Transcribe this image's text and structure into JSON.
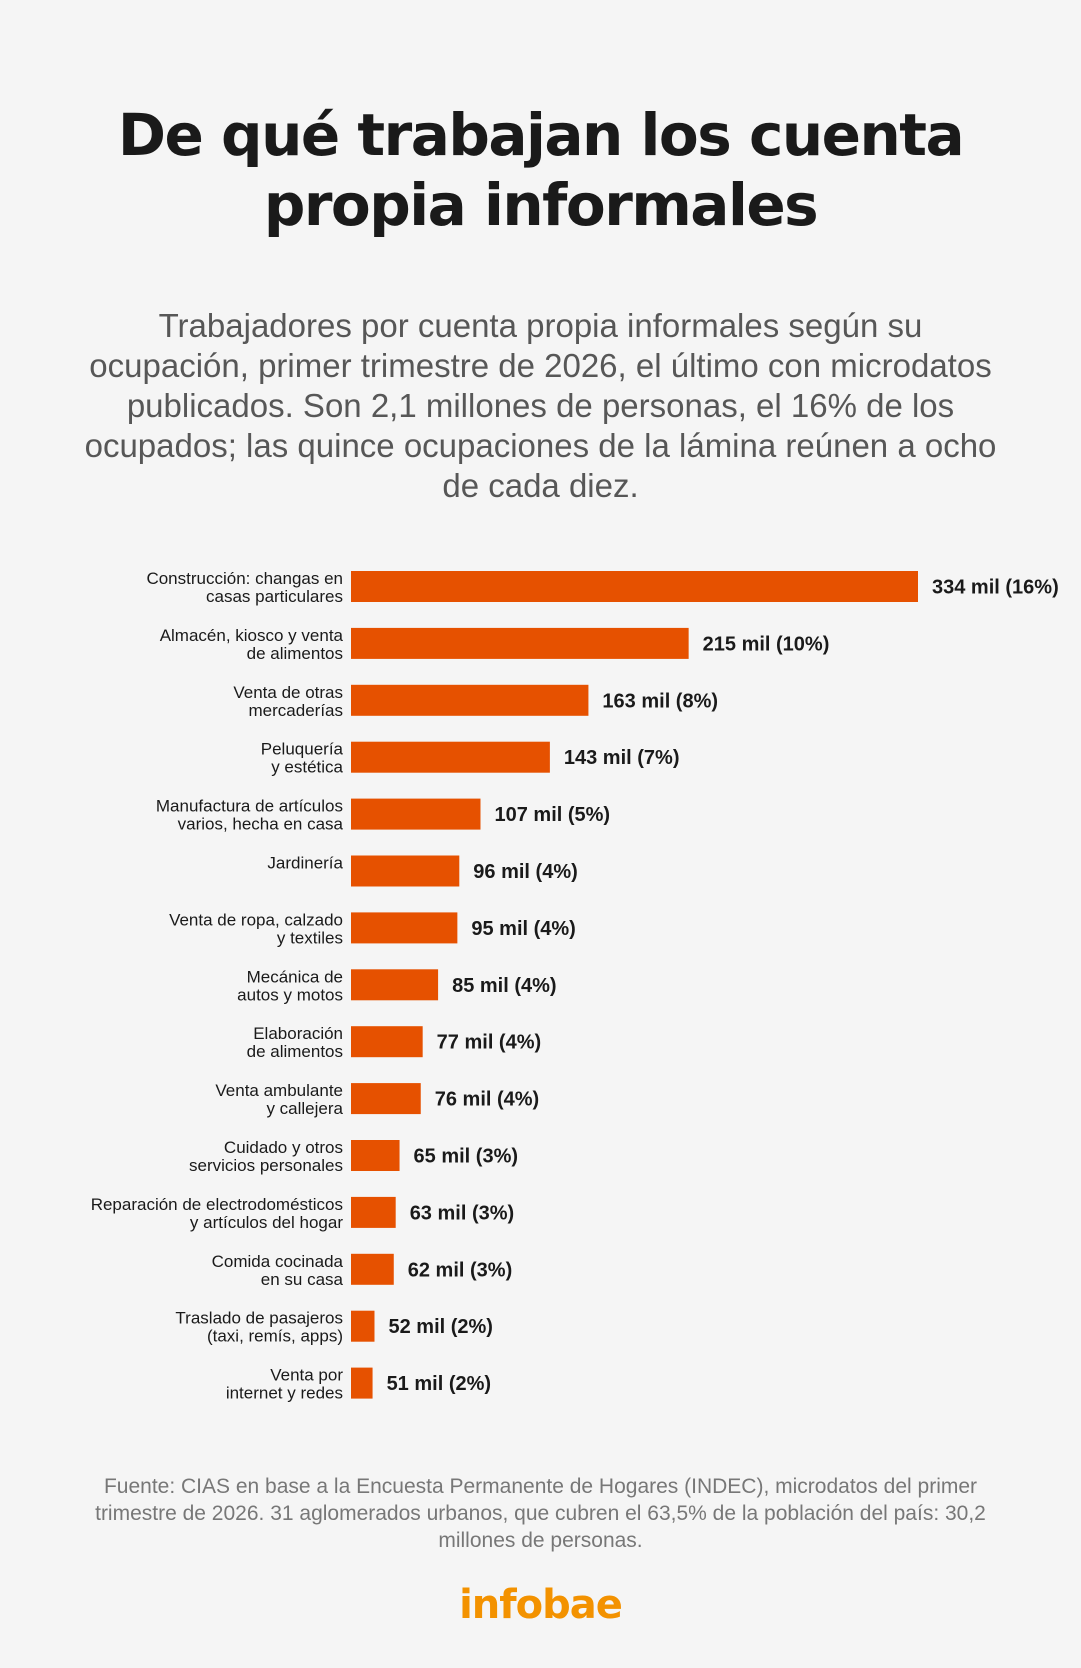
{
  "header": {
    "title": "De qué trabajan los cuenta propia informales",
    "subtitle": "Trabajadores por cuenta propia informales según su ocupación, primer trimestre de 2026, el último con microdatos publicados. Son 2,1 millones de personas, el 16% de los ocupados; las quince ocupaciones de la lámina reúnen a ocho de cada diez."
  },
  "footer": {
    "source": "Fuente: CIAS en base a la Encuesta Permanente de Hogares (INDEC), microdatos del primer trimestre de 2026. 31 aglomerados urbanos, que cubren el 63,5% de la población del país: 30,2 millones de personas.",
    "logo": "infobae"
  },
  "colors": {
    "bar": "#e65100",
    "logo": "#f39200",
    "background": "#f5f5f5"
  },
  "chart_data": {
    "type": "bar",
    "orientation": "horizontal",
    "unit": "miles de personas",
    "categories": [
      [
        "Construcción: changas en",
        "casas particulares"
      ],
      [
        "Almacén, kiosco y venta",
        "de alimentos"
      ],
      [
        "Venta de otras",
        "mercaderías"
      ],
      [
        "Peluquería",
        "y estética"
      ],
      [
        "Manufactura de artículos",
        "varios, hecha en casa"
      ],
      [
        "Jardinería"
      ],
      [
        "Venta de ropa, calzado",
        "y textiles"
      ],
      [
        "Mecánica de",
        "autos y motos"
      ],
      [
        "Elaboración",
        "de alimentos"
      ],
      [
        "Venta ambulante",
        "y callejera"
      ],
      [
        "Cuidado y otros",
        "servicios personales"
      ],
      [
        "Reparación de electrodomésticos",
        "y artículos del hogar"
      ],
      [
        "Comida cocinada",
        "en su casa"
      ],
      [
        "Traslado de pasajeros",
        "(taxi, remís, apps)"
      ],
      [
        "Venta por",
        "internet y redes"
      ]
    ],
    "values": [
      334,
      215,
      163,
      143,
      107,
      96,
      95,
      85,
      77,
      76,
      65,
      63,
      62,
      52,
      51
    ],
    "data_labels": [
      "334 mil (16%)",
      "215 mil (10%)",
      "163 mil (8%)",
      "143 mil (7%)",
      "107 mil (5%)",
      "96 mil (4%)",
      "95 mil (4%)",
      "85 mil (4%)",
      "77 mil (4%)",
      "76 mil (4%)",
      "65 mil (3%)",
      "63 mil (3%)",
      "62 mil (3%)",
      "52 mil (2%)",
      "51 mil (2%)"
    ],
    "xlim": [
      45,
      334
    ],
    "grid": false,
    "legend": false
  }
}
